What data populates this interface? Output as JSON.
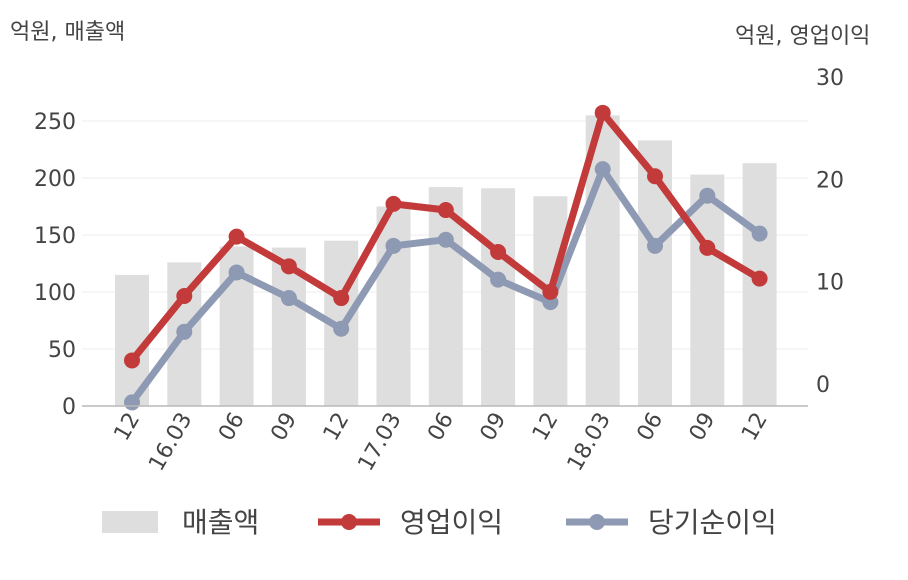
{
  "chart_data": {
    "type": "bar+line",
    "left_axis_unit": "억원, 매출액",
    "right_axis_unit": "억원, 영업이익",
    "categories": [
      "12",
      "16.03",
      "06",
      "09",
      "12",
      "17.03",
      "06",
      "09",
      "12",
      "18.03",
      "06",
      "09",
      "12"
    ],
    "left_axis": {
      "ylim": [
        0,
        250
      ],
      "ticks": [
        0,
        50,
        100,
        150,
        200,
        250
      ]
    },
    "right_axis": {
      "ylim": [
        -2,
        30
      ],
      "ticks": [
        0,
        10,
        20,
        30
      ]
    },
    "series": [
      {
        "name": "매출액",
        "kind": "bar",
        "axis": "left",
        "color": "#dedede",
        "values": [
          115,
          126,
          140,
          139,
          145,
          175,
          192,
          191,
          184,
          255,
          233,
          203,
          213
        ]
      },
      {
        "name": "영업이익",
        "kind": "line",
        "axis": "right",
        "color": "#c23a3a",
        "values": [
          2.3,
          8.6,
          14.4,
          11.5,
          8.4,
          17.6,
          17.0,
          12.9,
          9.0,
          26.5,
          20.3,
          13.3,
          10.3
        ]
      },
      {
        "name": "당기순이익",
        "kind": "line",
        "axis": "right",
        "color": "#8e9ab3",
        "values": [
          -1.8,
          5.1,
          10.9,
          8.4,
          5.4,
          13.5,
          14.1,
          10.2,
          8.0,
          21.0,
          13.5,
          18.4,
          14.7
        ]
      }
    ],
    "legend": {
      "position": "bottom"
    },
    "grid": true
  }
}
